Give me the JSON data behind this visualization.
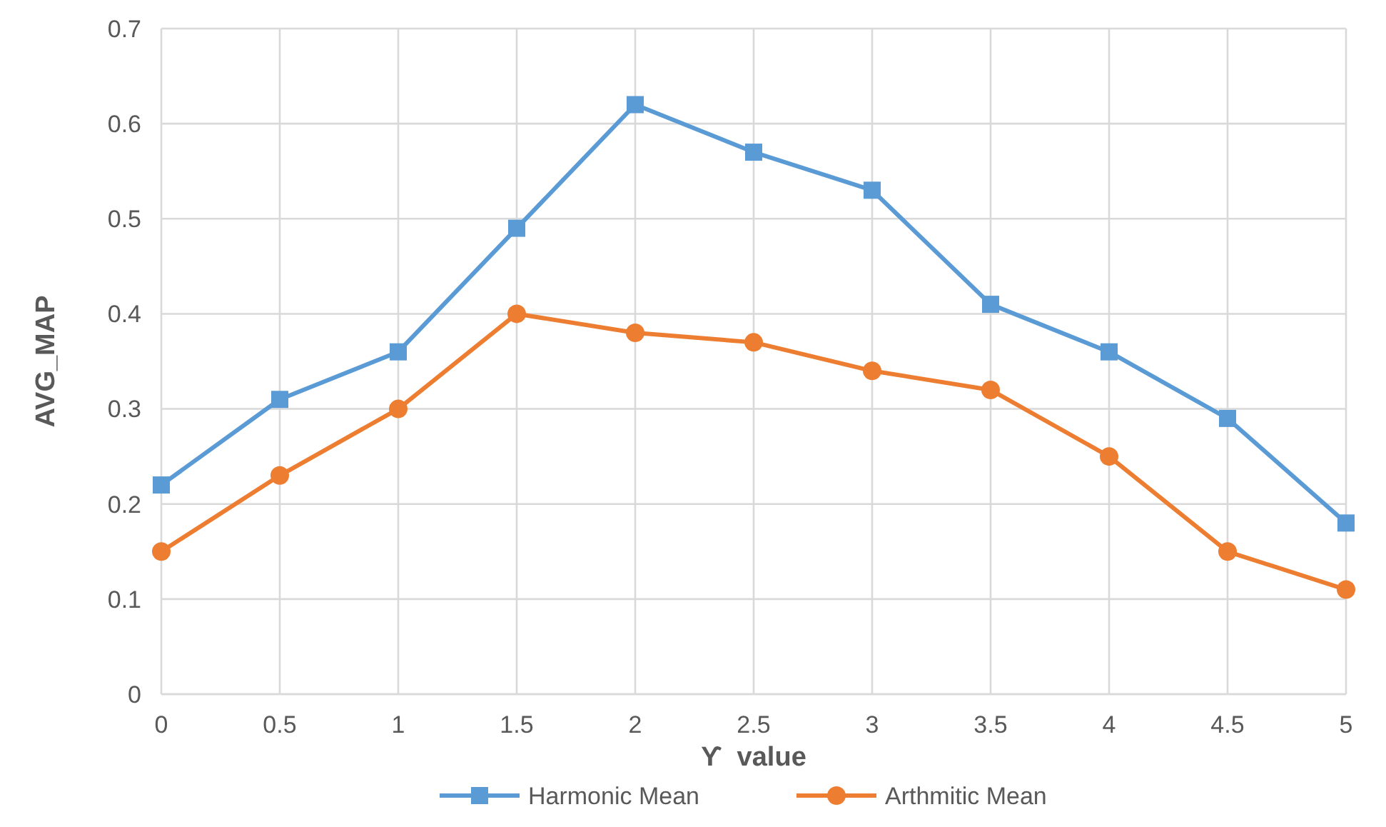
{
  "chart_data": {
    "type": "line",
    "xlabel": "ϒ  value",
    "ylabel": "AVG_MAP",
    "x": [
      0,
      0.5,
      1,
      1.5,
      2,
      2.5,
      3,
      3.5,
      4,
      4.5,
      5
    ],
    "series": [
      {
        "name": "Harmonic Mean",
        "color": "#5b9bd5",
        "marker": "square",
        "values": [
          0.22,
          0.31,
          0.36,
          0.49,
          0.62,
          0.57,
          0.53,
          0.41,
          0.36,
          0.29,
          0.18
        ]
      },
      {
        "name": "Arthmitic Mean",
        "color": "#ed7d31",
        "marker": "circle",
        "values": [
          0.15,
          0.23,
          0.3,
          0.4,
          0.38,
          0.37,
          0.34,
          0.32,
          0.25,
          0.15,
          0.11
        ]
      }
    ],
    "xlim": [
      0,
      5
    ],
    "xticks": [
      0,
      0.5,
      1,
      1.5,
      2,
      2.5,
      3,
      3.5,
      4,
      4.5,
      5
    ],
    "ylim": [
      0,
      0.7
    ],
    "yticks": [
      0,
      0.1,
      0.2,
      0.3,
      0.4,
      0.5,
      0.6,
      0.7
    ],
    "grid": true,
    "legend": "bottom",
    "line_style": "solid"
  }
}
